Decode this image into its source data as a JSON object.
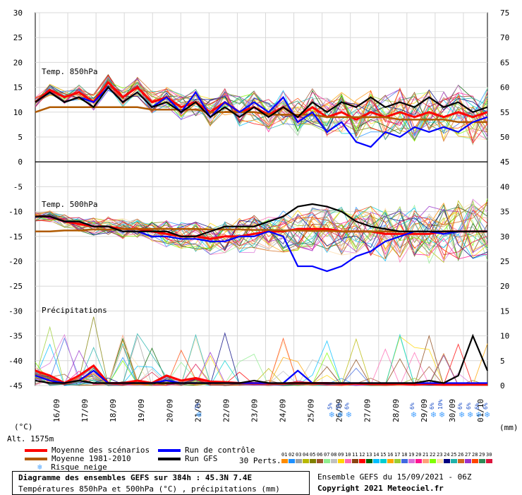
{
  "chart_data": {
    "type": "line",
    "title": "Diagramme des ensembles GEFS sur 384h : 45.3N 7.4E",
    "subtitle": "Températures 850hPa et 500hPa (°C) , précipitations (mm)",
    "x_labels": [
      "16/09",
      "17/09",
      "18/09",
      "19/09",
      "20/09",
      "21/09",
      "22/09",
      "23/09",
      "24/09",
      "25/09",
      "26/09",
      "27/09",
      "28/09",
      "29/09",
      "30/09",
      "01/10"
    ],
    "left_axis": {
      "label": "(°C)",
      "ticks": [
        30,
        25,
        20,
        15,
        10,
        5,
        0,
        -5,
        -10,
        -15,
        -20,
        -25,
        -30,
        -35,
        -40,
        -45
      ],
      "range": [
        -45,
        30
      ]
    },
    "right_axis": {
      "label": "(mm)",
      "ticks": [
        75,
        70,
        65,
        60,
        55,
        50,
        45,
        40,
        35,
        30,
        25,
        20,
        15,
        10,
        5,
        0
      ]
    },
    "panel_labels": {
      "t850": "Temp. 850hPa",
      "t500": "Temp. 500hPa",
      "precip": "Précipitations"
    },
    "altitude": "Alt. 1575m",
    "snow_risk": [
      {
        "date_index": 5.7,
        "text": "7%"
      },
      {
        "date_index": 10.4,
        "text": "5%"
      },
      {
        "date_index": 10.7,
        "text": "5%"
      },
      {
        "date_index": 11.0,
        "text": "6%"
      },
      {
        "date_index": 13.3,
        "text": "6%"
      },
      {
        "date_index": 14.0,
        "text": "6%"
      },
      {
        "date_index": 14.3,
        "text": "10%"
      },
      {
        "date_index": 15.0,
        "text": "6%"
      },
      {
        "date_index": 15.3,
        "text": "6%"
      },
      {
        "date_index": 15.6,
        "text": "6%"
      },
      {
        "date_index": 15.9,
        "text": "6%"
      }
    ],
    "series": [
      {
        "name": "Moyenne des scénarios",
        "color": "#ff0000",
        "t850": [
          12,
          14.5,
          13,
          14,
          12,
          16,
          13,
          15,
          12,
          13,
          11,
          12,
          10,
          12,
          10,
          11,
          9.5,
          11,
          9,
          11,
          9,
          10,
          8.5,
          10,
          9,
          10,
          9,
          10,
          9,
          10,
          9,
          10
        ],
        "t500": [
          -11,
          -11,
          -12,
          -12.5,
          -13,
          -13,
          -13.5,
          -13.5,
          -14,
          -14.5,
          -15,
          -15,
          -15.5,
          -15,
          -15,
          -14.5,
          -14,
          -14,
          -13.5,
          -13.5,
          -13.5,
          -14,
          -14,
          -14,
          -14.5,
          -14.5,
          -14.5,
          -14.5,
          -14,
          -14,
          -14,
          -14
        ],
        "precip": [
          3,
          2,
          0.5,
          2,
          4,
          0.5,
          0.5,
          1,
          0.5,
          2,
          1,
          1.5,
          0.8,
          0.7,
          0.5,
          0.5,
          0.4,
          0.4,
          0.6,
          0.5,
          0.5,
          0.4,
          0.4,
          0.3,
          0.3,
          0.3,
          0.2,
          0.3,
          0.2,
          0.2,
          0.2,
          0.2
        ]
      },
      {
        "name": "Moyenne 1981-2010",
        "color": "#b05a00",
        "t850": [
          10,
          11,
          11,
          11,
          11,
          11,
          11,
          11,
          10.5,
          10.5,
          10.5,
          10.5,
          10,
          10,
          10,
          10,
          9.5,
          9.5,
          9.5,
          9.5,
          9,
          9,
          9,
          9,
          9,
          8.5,
          8.5,
          8.5,
          8.5,
          8,
          8,
          8
        ],
        "t500": [
          -14,
          -14,
          -13.8,
          -13.8,
          -13.6,
          -13.6,
          -13.5,
          -13.5,
          -13.5,
          -13.5,
          -13.5,
          -13.5,
          -13.6,
          -13.6,
          -13.6,
          -13.7,
          -13.7,
          -13.8,
          -13.8,
          -13.9,
          -13.9,
          -14,
          -14,
          -14,
          -14,
          -14,
          -14,
          -14,
          -14,
          -14,
          -14,
          -14
        ]
      },
      {
        "name": "Run de contrôle",
        "color": "#0000ff",
        "t850": [
          12,
          14,
          12,
          13,
          12,
          15,
          12,
          14,
          11,
          13,
          10,
          14,
          9,
          12,
          10,
          12,
          10,
          13,
          8,
          10,
          6,
          8,
          4,
          3,
          6,
          5,
          7,
          6,
          7,
          6,
          8,
          9
        ],
        "t500": [
          -11,
          -11,
          -12,
          -12,
          -13,
          -13,
          -14,
          -14,
          -15,
          -15,
          -15.5,
          -15.5,
          -16,
          -16,
          -15,
          -15,
          -14,
          -15,
          -21,
          -21,
          -22,
          -21,
          -19,
          -18,
          -16,
          -15,
          -14,
          -14,
          -14.5,
          -14,
          -14,
          -14
        ],
        "precip": [
          2,
          1,
          0.5,
          1,
          3,
          0.5,
          0.5,
          0.5,
          0.5,
          1,
          0.5,
          0.5,
          0.5,
          0.5,
          0.5,
          0.5,
          0.5,
          0.5,
          3,
          0.5,
          0.5,
          0.5,
          0.5,
          0.5,
          0.5,
          0.5,
          0.5,
          0.5,
          0.5,
          0.5,
          0.5,
          0.5
        ]
      },
      {
        "name": "Run GFS",
        "color": "#000000",
        "t850": [
          12,
          14,
          12,
          13,
          11,
          15,
          12,
          14,
          11,
          12,
          10,
          12,
          9,
          11,
          9,
          11,
          9,
          11,
          9,
          12,
          10,
          12,
          11,
          13,
          11,
          12,
          11,
          13,
          11,
          12,
          10,
          11
        ],
        "t500": [
          -11,
          -11,
          -12,
          -12,
          -13,
          -13,
          -14,
          -14,
          -14,
          -14,
          -15,
          -15,
          -14,
          -13,
          -13,
          -13,
          -12,
          -11,
          -9,
          -8.5,
          -9,
          -10,
          -12,
          -13,
          -13.5,
          -14,
          -14,
          -14,
          -14,
          -14,
          -14,
          -14
        ],
        "precip": [
          1,
          0.5,
          0.5,
          1,
          0.5,
          0.5,
          0.5,
          0.5,
          0.5,
          0.5,
          0.5,
          0.5,
          0.5,
          0.5,
          0.5,
          1,
          0.5,
          0.5,
          0.5,
          0.5,
          0.5,
          0.5,
          0.5,
          0.5,
          0.5,
          0.5,
          0.5,
          1,
          0.5,
          2,
          10,
          3
        ]
      }
    ],
    "perturbations": {
      "label": "30 Perts.",
      "ids": [
        "01",
        "02",
        "03",
        "04",
        "05",
        "06",
        "07",
        "08",
        "09",
        "10",
        "11",
        "12",
        "13",
        "14",
        "15",
        "16",
        "17",
        "18",
        "19",
        "20",
        "21",
        "22",
        "23",
        "24",
        "25",
        "26",
        "27",
        "28",
        "29",
        "30"
      ],
      "colors": [
        "#ff8c00",
        "#1e90ff",
        "#a0a0a0",
        "#b8b800",
        "#808000",
        "#a0522d",
        "#90ee90",
        "#c0c0c0",
        "#ffd700",
        "#ff69b4",
        "#8b4513",
        "#ff0000",
        "#006400",
        "#00bfff",
        "#00ced1",
        "#ffa500",
        "#9acd32",
        "#4169e1",
        "#da70d6",
        "#ff1493",
        "#ffa07a",
        "#7fff00",
        "#ffdead",
        "#000080",
        "#20b2aa",
        "#d2691e",
        "#9932cc",
        "#ff4500",
        "#2e8b57",
        "#dc143c"
      ]
    }
  },
  "legend": {
    "mean": "Moyenne des scénarios",
    "clim": "Moyenne 1981-2010",
    "snow": "Risque neige",
    "control": "Run de contrôle",
    "gfs": "Run GFS",
    "perts_label": "30 Perts."
  },
  "footer": {
    "title": "Diagramme des ensembles GEFS sur 384h : 45.3N 7.4E",
    "subtitle": "Températures 850hPa et 500hPa (°C) , précipitations (mm)",
    "run": "Ensemble GEFS du 15/09/2021 - 06Z",
    "copyright": "Copyright 2021 Meteociel.fr"
  },
  "colors": {
    "mean": "#ff0000",
    "clim": "#b05a00",
    "control": "#0000ff",
    "gfs": "#000000",
    "snow": "#4aa3ff"
  }
}
